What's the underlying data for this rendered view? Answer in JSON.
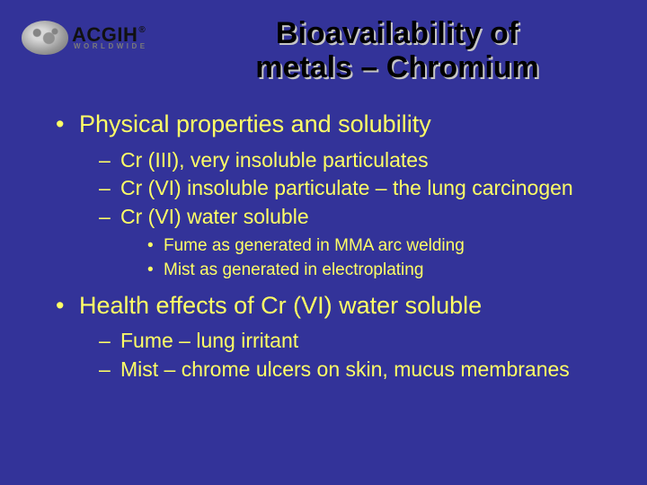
{
  "colors": {
    "background": "#333399",
    "text": "#ffff66",
    "title": "#000000",
    "title_shadow": "#c6c6c6"
  },
  "logo": {
    "brand": "ACGIH",
    "reg": "®",
    "sub": "WORLDWIDE"
  },
  "title_line1": "Bioavailability of",
  "title_line2": "metals – Chromium",
  "bullets": [
    {
      "text": "Physical properties and solubility",
      "children": [
        {
          "text": "Cr (III), very insoluble particulates"
        },
        {
          "text": "Cr (VI) insoluble particulate – the lung carcinogen"
        },
        {
          "text": "Cr (VI) water soluble",
          "children": [
            {
              "text": "Fume as generated in MMA arc welding"
            },
            {
              "text": "Mist as generated in electroplating"
            }
          ]
        }
      ]
    },
    {
      "text": "Health effects of Cr (VI) water soluble",
      "children": [
        {
          "text": "Fume – lung irritant"
        },
        {
          "text": "Mist – chrome ulcers on skin, mucus membranes"
        }
      ]
    }
  ]
}
